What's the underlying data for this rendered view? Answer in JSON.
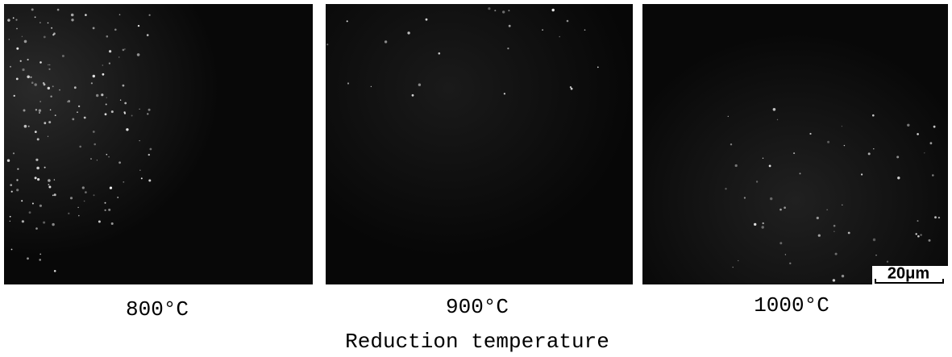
{
  "panels": [
    {
      "label": "800°C"
    },
    {
      "label": "900°C"
    },
    {
      "label": "1000°C"
    }
  ],
  "scale_bar": "20μm",
  "caption": "Reduction temperature"
}
